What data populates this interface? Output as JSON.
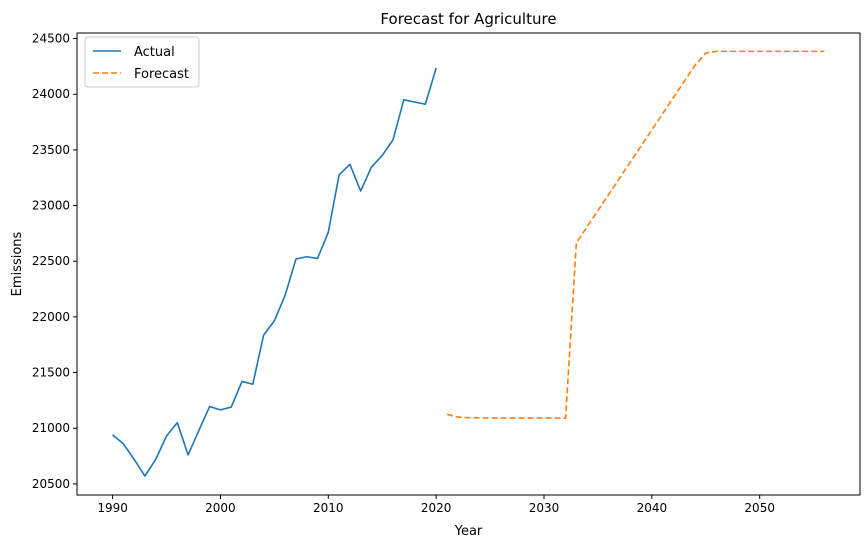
{
  "chart_data": {
    "type": "line",
    "title": "Forecast for Agriculture",
    "xlabel": "Year",
    "ylabel": "Emissions",
    "xlim": [
      1986.7,
      2059.3
    ],
    "ylim": [
      20400,
      24550
    ],
    "xticks": [
      1990,
      2000,
      2010,
      2020,
      2030,
      2040,
      2050
    ],
    "yticks": [
      20500,
      21000,
      21500,
      22000,
      22500,
      23000,
      23500,
      24000,
      24500
    ],
    "grid": false,
    "legend_position": "upper left",
    "series": [
      {
        "name": "Actual",
        "color": "#1f77b4",
        "style": "solid",
        "x": [
          1990,
          1991,
          1992,
          1993,
          1994,
          1995,
          1996,
          1997,
          1998,
          1999,
          2000,
          2001,
          2002,
          2003,
          2004,
          2005,
          2006,
          2007,
          2008,
          2009,
          2010,
          2011,
          2012,
          2013,
          2014,
          2015,
          2016,
          2017,
          2018,
          2019,
          2020
        ],
        "y": [
          20940,
          20860,
          20720,
          20570,
          20720,
          20930,
          21050,
          20760,
          20980,
          21195,
          21165,
          21190,
          21420,
          21395,
          21835,
          21965,
          22195,
          22520,
          22540,
          22525,
          22760,
          23275,
          23370,
          23130,
          23345,
          23450,
          23590,
          23950,
          23930,
          23910,
          24235
        ]
      },
      {
        "name": "Forecast",
        "color": "#ff7f0e",
        "style": "dashed",
        "x": [
          2021,
          2022,
          2023,
          2024,
          2025,
          2026,
          2027,
          2028,
          2029,
          2030,
          2031,
          2032,
          2033,
          2034,
          2035,
          2036,
          2037,
          2038,
          2039,
          2040,
          2041,
          2042,
          2043,
          2044,
          2045,
          2046,
          2047,
          2048,
          2049,
          2050,
          2051,
          2052,
          2053,
          2054,
          2055,
          2056
        ],
        "y": [
          21125,
          21100,
          21095,
          21093,
          21092,
          21091,
          21091,
          21091,
          21091,
          21091,
          21091,
          21090,
          22665,
          22810,
          22955,
          23100,
          23245,
          23390,
          23535,
          23680,
          23825,
          23970,
          24115,
          24260,
          24370,
          24385,
          24385,
          24385,
          24385,
          24385,
          24385,
          24385,
          24385,
          24385,
          24385,
          24385
        ]
      }
    ]
  }
}
